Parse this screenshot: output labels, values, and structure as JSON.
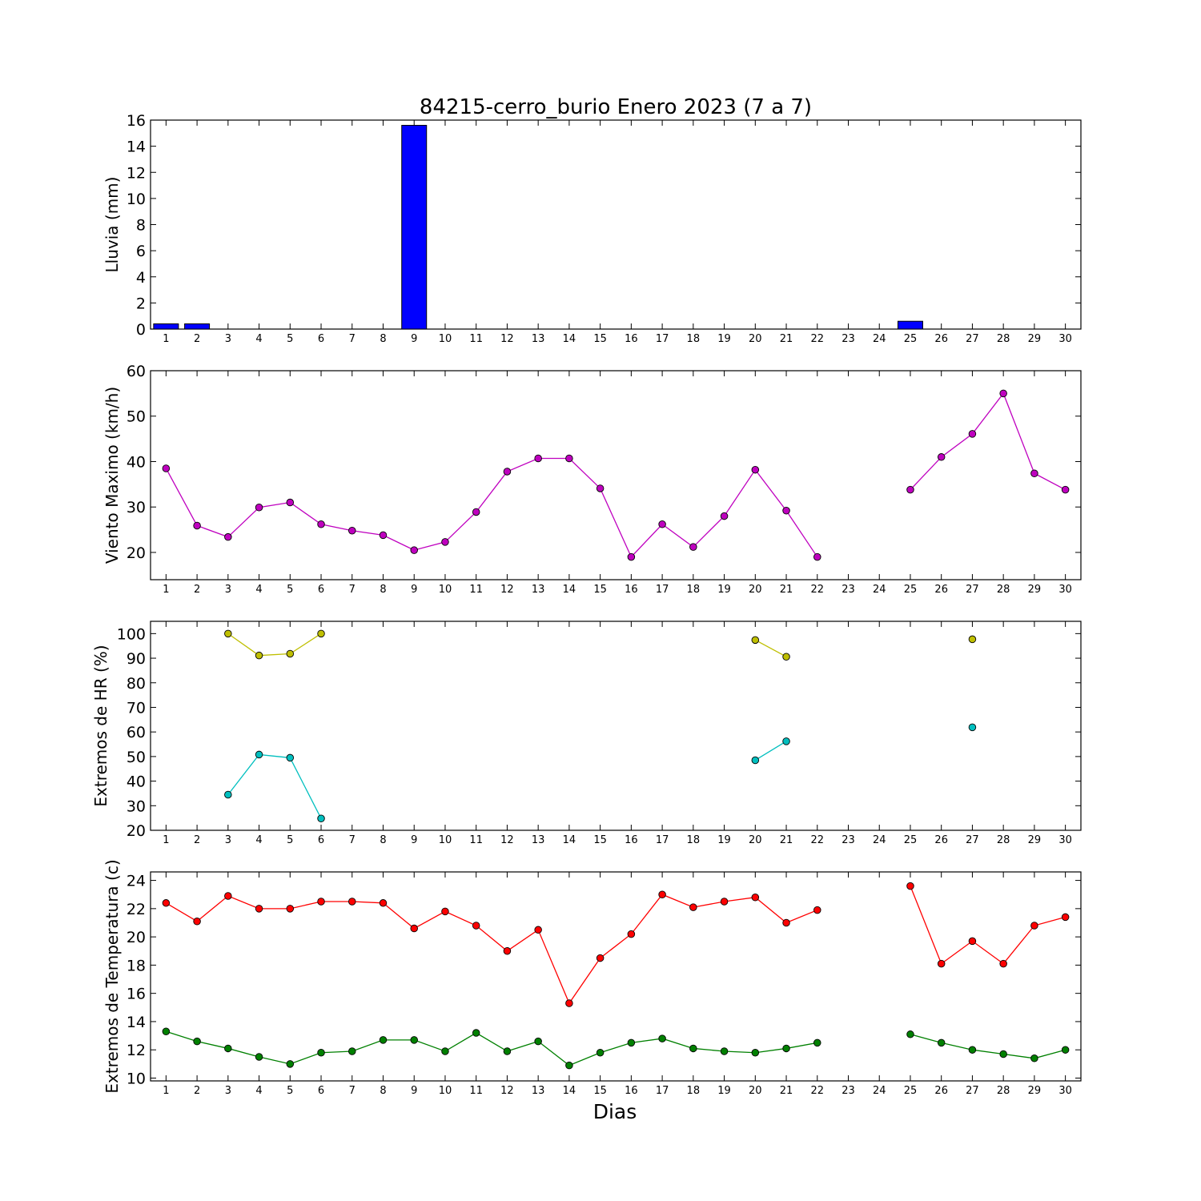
{
  "chart_data": {
    "title": "84215-cerro_burio Enero 2023  (7 a 7)",
    "xlabel": "Dias",
    "days": [
      1,
      2,
      3,
      4,
      5,
      6,
      7,
      8,
      9,
      10,
      11,
      12,
      13,
      14,
      15,
      16,
      17,
      18,
      19,
      20,
      21,
      22,
      23,
      24,
      25,
      26,
      27,
      28,
      29,
      30
    ],
    "panels": [
      {
        "type": "bar",
        "ylabel": "Lluvia (mm)",
        "ylim": [
          0,
          16
        ],
        "yticks": [
          0,
          2,
          4,
          6,
          8,
          10,
          12,
          14,
          16
        ],
        "series": [
          {
            "color": "#0000ff",
            "values": [
              0.4,
              0.4,
              0,
              0,
              0,
              0,
              0,
              0,
              15.6,
              0,
              0,
              0,
              0,
              0,
              0,
              0,
              0,
              0,
              0,
              0,
              0,
              0,
              0,
              0,
              0.6,
              0,
              0,
              0,
              0,
              0
            ]
          }
        ]
      },
      {
        "type": "line",
        "ylabel": "Viento Maximo (km/h)",
        "ylim": [
          14,
          60
        ],
        "yticks": [
          20,
          30,
          40,
          50,
          60
        ],
        "series": [
          {
            "color": "#bf00bf",
            "values": [
              38.5,
              25.9,
              23.4,
              29.9,
              31.0,
              26.2,
              24.8,
              23.8,
              20.5,
              22.3,
              28.9,
              37.8,
              40.7,
              40.7,
              34.1,
              19.0,
              26.2,
              21.2,
              28.0,
              38.2,
              29.2,
              19.0,
              null,
              null,
              33.8,
              41.0,
              46.1,
              55.0,
              37.4,
              33.8
            ]
          }
        ]
      },
      {
        "type": "line",
        "ylabel": "Extremos de HR (%)",
        "ylim": [
          20,
          105
        ],
        "yticks": [
          20,
          30,
          40,
          50,
          60,
          70,
          80,
          90,
          100
        ],
        "series": [
          {
            "color": "#bfbf00",
            "values": [
              null,
              null,
              100,
              91.1,
              91.8,
              100,
              null,
              null,
              null,
              null,
              null,
              null,
              null,
              null,
              null,
              null,
              null,
              null,
              null,
              97.4,
              90.6,
              null,
              null,
              null,
              null,
              null,
              97.7,
              null,
              null,
              null
            ]
          },
          {
            "color": "#00bfbf",
            "values": [
              null,
              null,
              34.5,
              50.8,
              49.5,
              24.8,
              null,
              null,
              null,
              null,
              null,
              null,
              null,
              null,
              null,
              null,
              null,
              null,
              null,
              48.5,
              56.2,
              null,
              null,
              null,
              null,
              null,
              61.9,
              null,
              null,
              null
            ]
          }
        ]
      },
      {
        "type": "line",
        "ylabel": "Extremos de Temperatura (c)",
        "ylim": [
          9.8,
          24.6
        ],
        "yticks": [
          10,
          12,
          14,
          16,
          18,
          20,
          22,
          24
        ],
        "series": [
          {
            "color": "#ff0000",
            "values": [
              22.4,
              21.1,
              22.9,
              22.0,
              22.0,
              22.5,
              22.5,
              22.4,
              20.6,
              21.8,
              20.8,
              19.0,
              20.5,
              15.3,
              18.5,
              20.2,
              23.0,
              22.1,
              22.5,
              22.8,
              21.0,
              21.9,
              null,
              null,
              23.6,
              18.1,
              19.7,
              18.1,
              20.8,
              21.4
            ]
          },
          {
            "color": "#008000",
            "values": [
              13.3,
              12.6,
              12.1,
              11.5,
              11.0,
              11.8,
              11.9,
              12.7,
              12.7,
              11.9,
              13.2,
              11.9,
              12.6,
              10.9,
              11.8,
              12.5,
              12.8,
              12.1,
              11.9,
              11.8,
              12.1,
              12.5,
              null,
              null,
              13.1,
              12.5,
              12.0,
              11.7,
              11.4,
              12.0
            ]
          }
        ]
      }
    ]
  }
}
